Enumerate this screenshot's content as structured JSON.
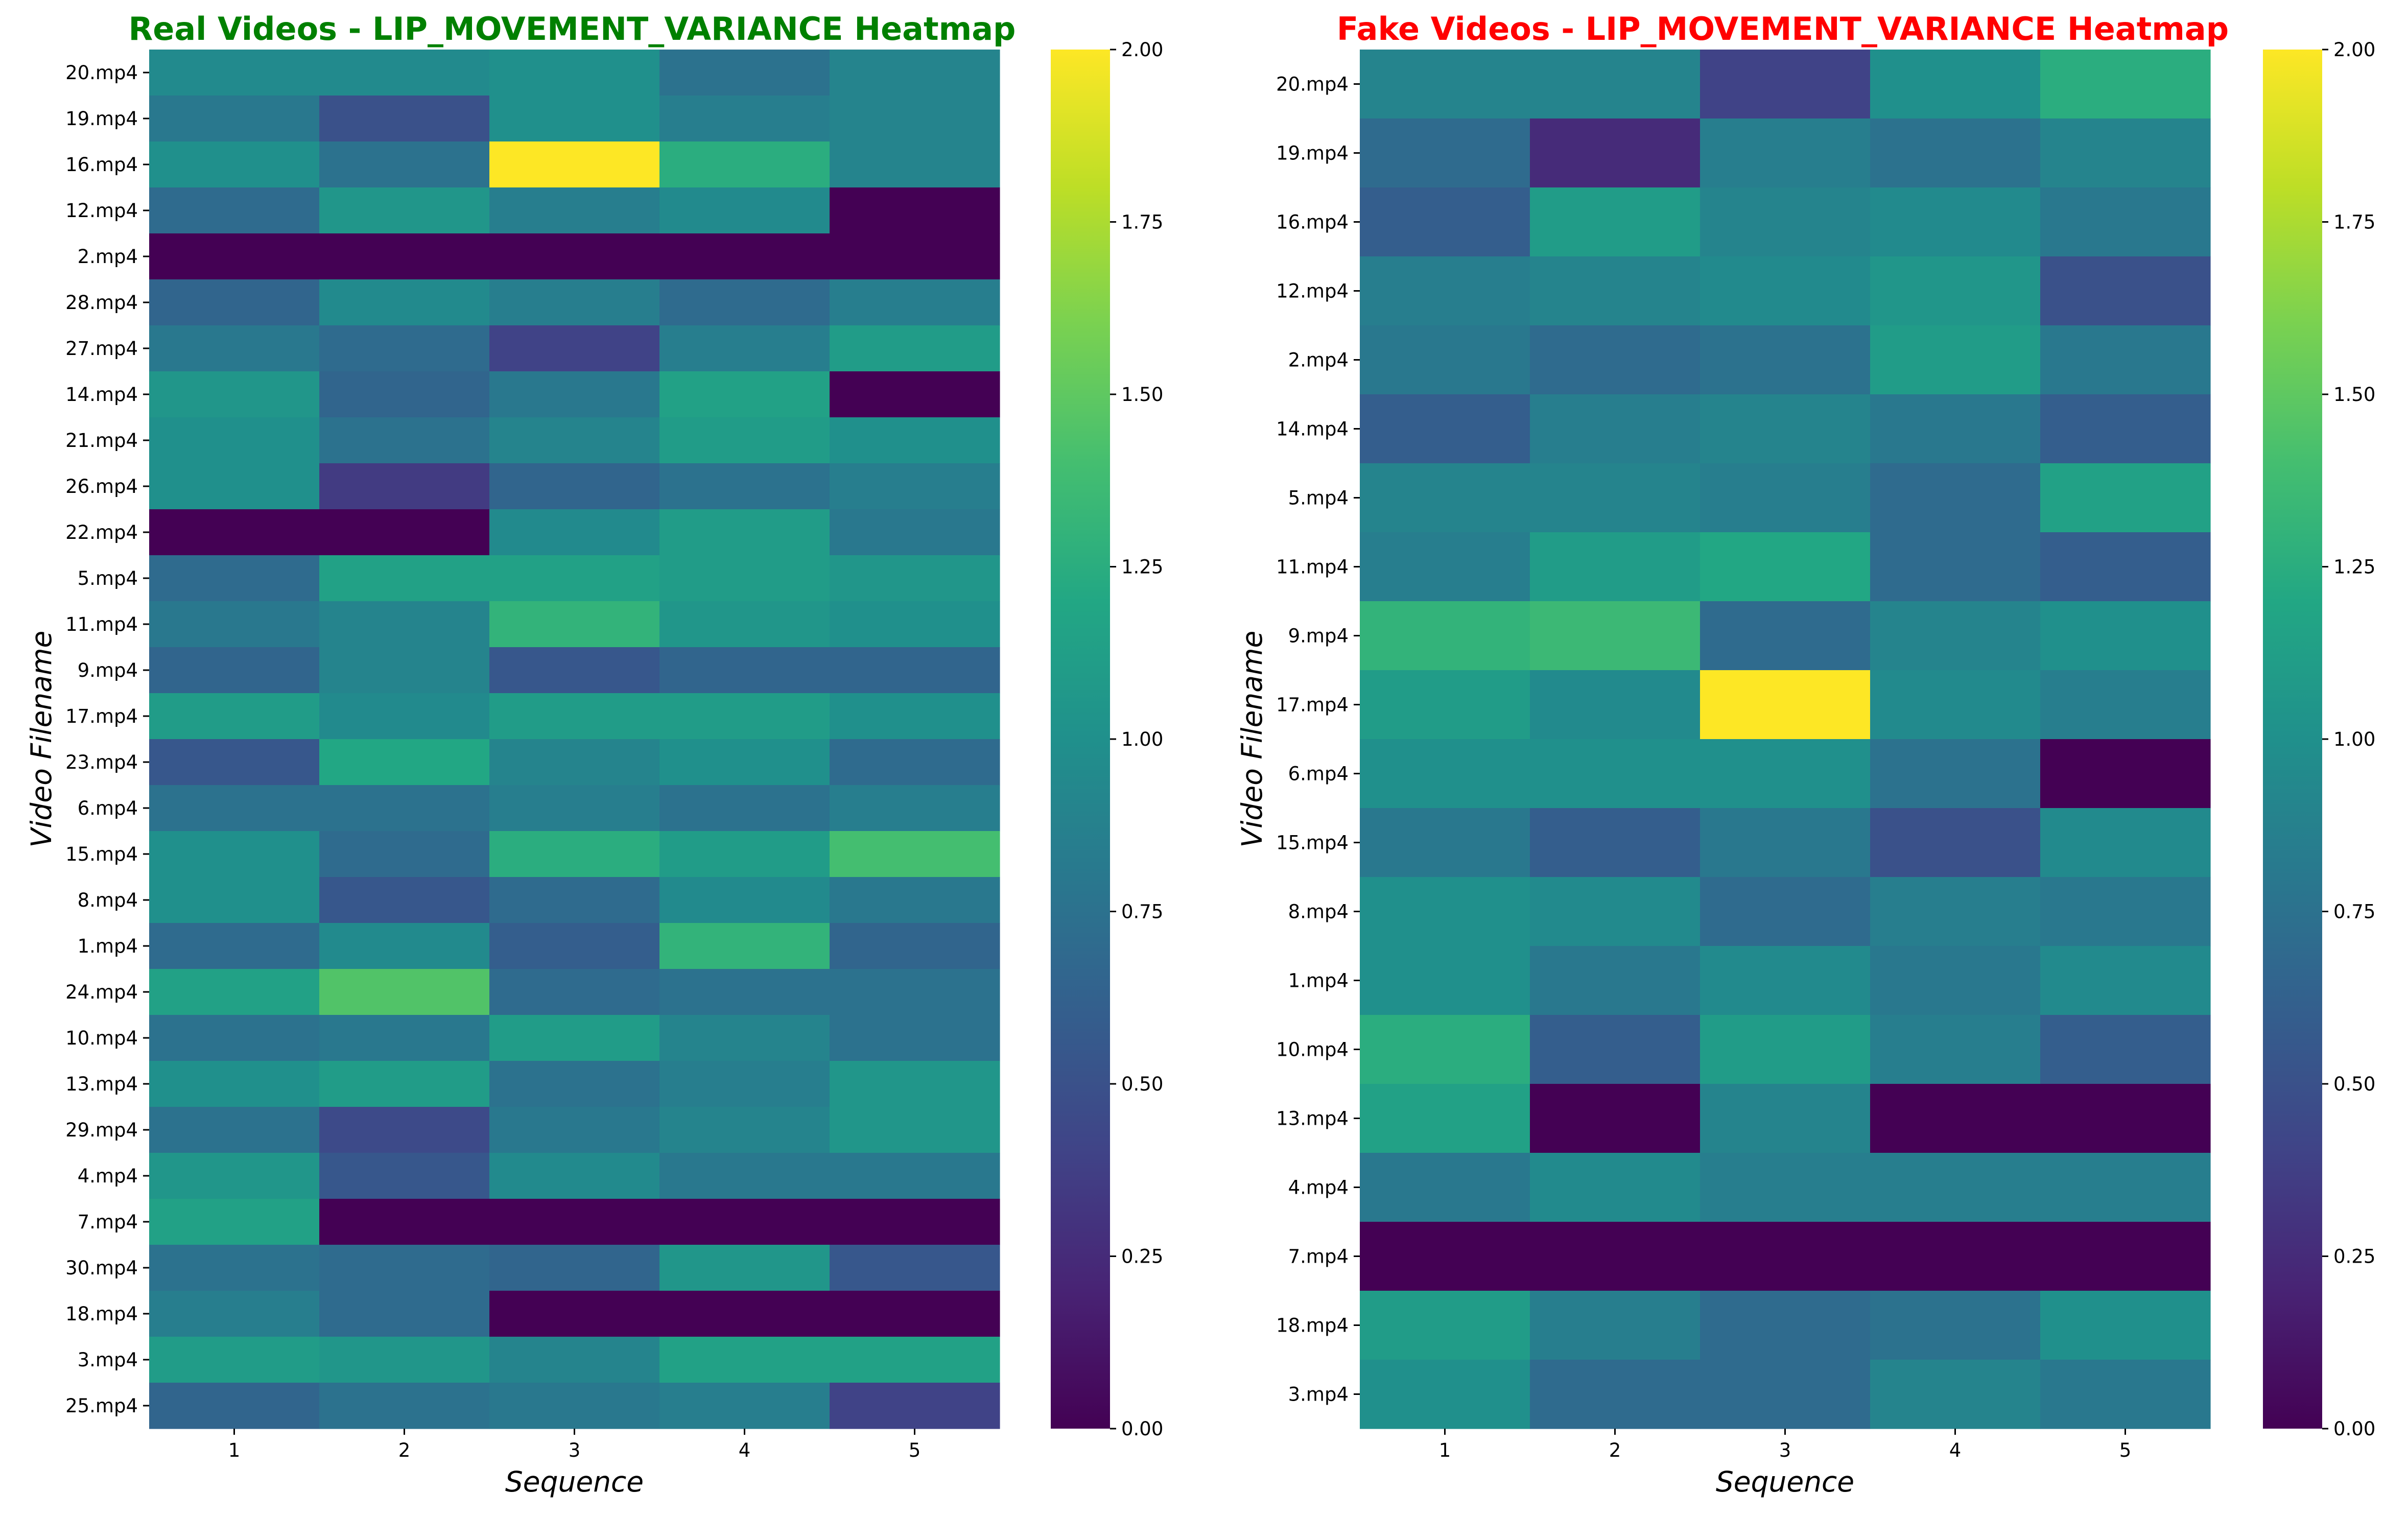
{
  "chart_data": [
    {
      "type": "heatmap",
      "title": "Real Videos - LIP_MOVEMENT_VARIANCE Heatmap",
      "title_color": "#008000",
      "xlabel": "Sequence",
      "ylabel": "Video Filename",
      "x": [
        "1",
        "2",
        "3",
        "4",
        "5"
      ],
      "y": [
        "20.mp4",
        "19.mp4",
        "16.mp4",
        "12.mp4",
        "2.mp4",
        "28.mp4",
        "27.mp4",
        "14.mp4",
        "21.mp4",
        "26.mp4",
        "22.mp4",
        "5.mp4",
        "11.mp4",
        "9.mp4",
        "17.mp4",
        "23.mp4",
        "6.mp4",
        "15.mp4",
        "8.mp4",
        "1.mp4",
        "24.mp4",
        "10.mp4",
        "13.mp4",
        "29.mp4",
        "4.mp4",
        "7.mp4",
        "30.mp4",
        "18.mp4",
        "3.mp4",
        "25.mp4"
      ],
      "values": [
        [
          0.95,
          0.95,
          1.0,
          0.75,
          0.9
        ],
        [
          0.8,
          0.5,
          1.0,
          0.85,
          0.9
        ],
        [
          1.0,
          0.75,
          2.0,
          1.25,
          0.9
        ],
        [
          0.7,
          1.05,
          0.85,
          0.95,
          0.0
        ],
        [
          0.0,
          0.0,
          0.0,
          0.0,
          0.0
        ],
        [
          0.65,
          0.95,
          0.85,
          0.7,
          0.85
        ],
        [
          0.8,
          0.7,
          0.4,
          0.85,
          1.1
        ],
        [
          1.05,
          0.65,
          0.8,
          1.15,
          0.0
        ],
        [
          1.0,
          0.75,
          0.9,
          1.1,
          1.0
        ],
        [
          1.0,
          0.35,
          0.65,
          0.75,
          0.85
        ],
        [
          0.0,
          0.0,
          0.95,
          1.1,
          0.8
        ],
        [
          0.7,
          1.15,
          1.15,
          1.1,
          1.05
        ],
        [
          0.8,
          0.9,
          1.3,
          1.05,
          1.0
        ],
        [
          0.65,
          0.9,
          0.55,
          0.65,
          0.65
        ],
        [
          1.1,
          0.95,
          1.1,
          1.1,
          1.0
        ],
        [
          0.55,
          1.2,
          0.9,
          1.0,
          0.7
        ],
        [
          0.75,
          0.75,
          0.85,
          0.75,
          0.85
        ],
        [
          1.0,
          0.7,
          1.25,
          1.1,
          1.4
        ],
        [
          1.0,
          0.55,
          0.7,
          0.95,
          0.8
        ],
        [
          0.7,
          0.95,
          0.6,
          1.3,
          0.65
        ],
        [
          1.15,
          1.45,
          0.7,
          0.75,
          0.75
        ],
        [
          0.75,
          0.8,
          1.1,
          0.9,
          0.75
        ],
        [
          1.0,
          1.1,
          0.75,
          0.85,
          1.05
        ],
        [
          0.75,
          0.45,
          0.8,
          0.9,
          1.05
        ],
        [
          1.05,
          0.55,
          0.95,
          0.8,
          0.8
        ],
        [
          1.15,
          0.0,
          0.0,
          0.0,
          0.0
        ],
        [
          0.75,
          0.7,
          0.65,
          1.05,
          0.55
        ],
        [
          0.85,
          0.7,
          0.0,
          0.0,
          0.0
        ],
        [
          1.1,
          1.05,
          0.9,
          1.15,
          1.15
        ],
        [
          0.65,
          0.75,
          0.8,
          0.85,
          0.4
        ]
      ],
      "colorbar": {
        "min": 0,
        "max": 2,
        "ticks": [
          "0.00",
          "0.25",
          "0.50",
          "0.75",
          "1.00",
          "1.25",
          "1.50",
          "1.75",
          "2.00"
        ]
      },
      "colormap": "viridis"
    },
    {
      "type": "heatmap",
      "title": "Fake Videos - LIP_MOVEMENT_VARIANCE Heatmap",
      "title_color": "#ff0000",
      "xlabel": "Sequence",
      "ylabel": "Video Filename",
      "x": [
        "1",
        "2",
        "3",
        "4",
        "5"
      ],
      "y": [
        "20.mp4",
        "19.mp4",
        "16.mp4",
        "12.mp4",
        "2.mp4",
        "14.mp4",
        "5.mp4",
        "11.mp4",
        "9.mp4",
        "17.mp4",
        "6.mp4",
        "15.mp4",
        "8.mp4",
        "1.mp4",
        "10.mp4",
        "13.mp4",
        "4.mp4",
        "7.mp4",
        "18.mp4",
        "3.mp4"
      ],
      "values": [
        [
          0.9,
          0.9,
          0.4,
          1.0,
          1.25
        ],
        [
          0.7,
          0.25,
          0.85,
          0.75,
          0.9
        ],
        [
          0.6,
          1.1,
          0.9,
          0.95,
          0.8
        ],
        [
          0.85,
          0.9,
          0.95,
          1.05,
          0.5
        ],
        [
          0.8,
          0.7,
          0.75,
          1.1,
          0.8
        ],
        [
          0.6,
          0.85,
          0.9,
          0.8,
          0.6
        ],
        [
          0.9,
          0.9,
          0.85,
          0.7,
          1.15
        ],
        [
          0.85,
          1.1,
          1.2,
          0.7,
          0.6
        ],
        [
          1.3,
          1.35,
          0.7,
          0.9,
          1.0
        ],
        [
          1.1,
          0.95,
          2.0,
          0.95,
          0.85
        ],
        [
          1.0,
          1.0,
          1.0,
          0.75,
          0.0
        ],
        [
          0.8,
          0.6,
          0.8,
          0.5,
          0.95
        ],
        [
          1.0,
          0.95,
          0.7,
          0.85,
          0.8
        ],
        [
          1.0,
          0.8,
          0.95,
          0.8,
          0.95
        ],
        [
          1.25,
          0.6,
          1.1,
          0.85,
          0.6
        ],
        [
          1.15,
          0.0,
          0.9,
          0.0,
          0.0
        ],
        [
          0.8,
          0.95,
          0.85,
          0.85,
          0.85
        ],
        [
          0.0,
          0.0,
          0.0,
          0.0,
          0.0
        ],
        [
          1.1,
          0.85,
          0.7,
          0.75,
          1.0
        ],
        [
          1.0,
          0.7,
          0.7,
          0.9,
          0.8
        ]
      ],
      "colorbar": {
        "min": 0,
        "max": 2,
        "ticks": [
          "0.00",
          "0.25",
          "0.50",
          "0.75",
          "1.00",
          "1.25",
          "1.50",
          "1.75",
          "2.00"
        ]
      },
      "colormap": "viridis"
    }
  ]
}
